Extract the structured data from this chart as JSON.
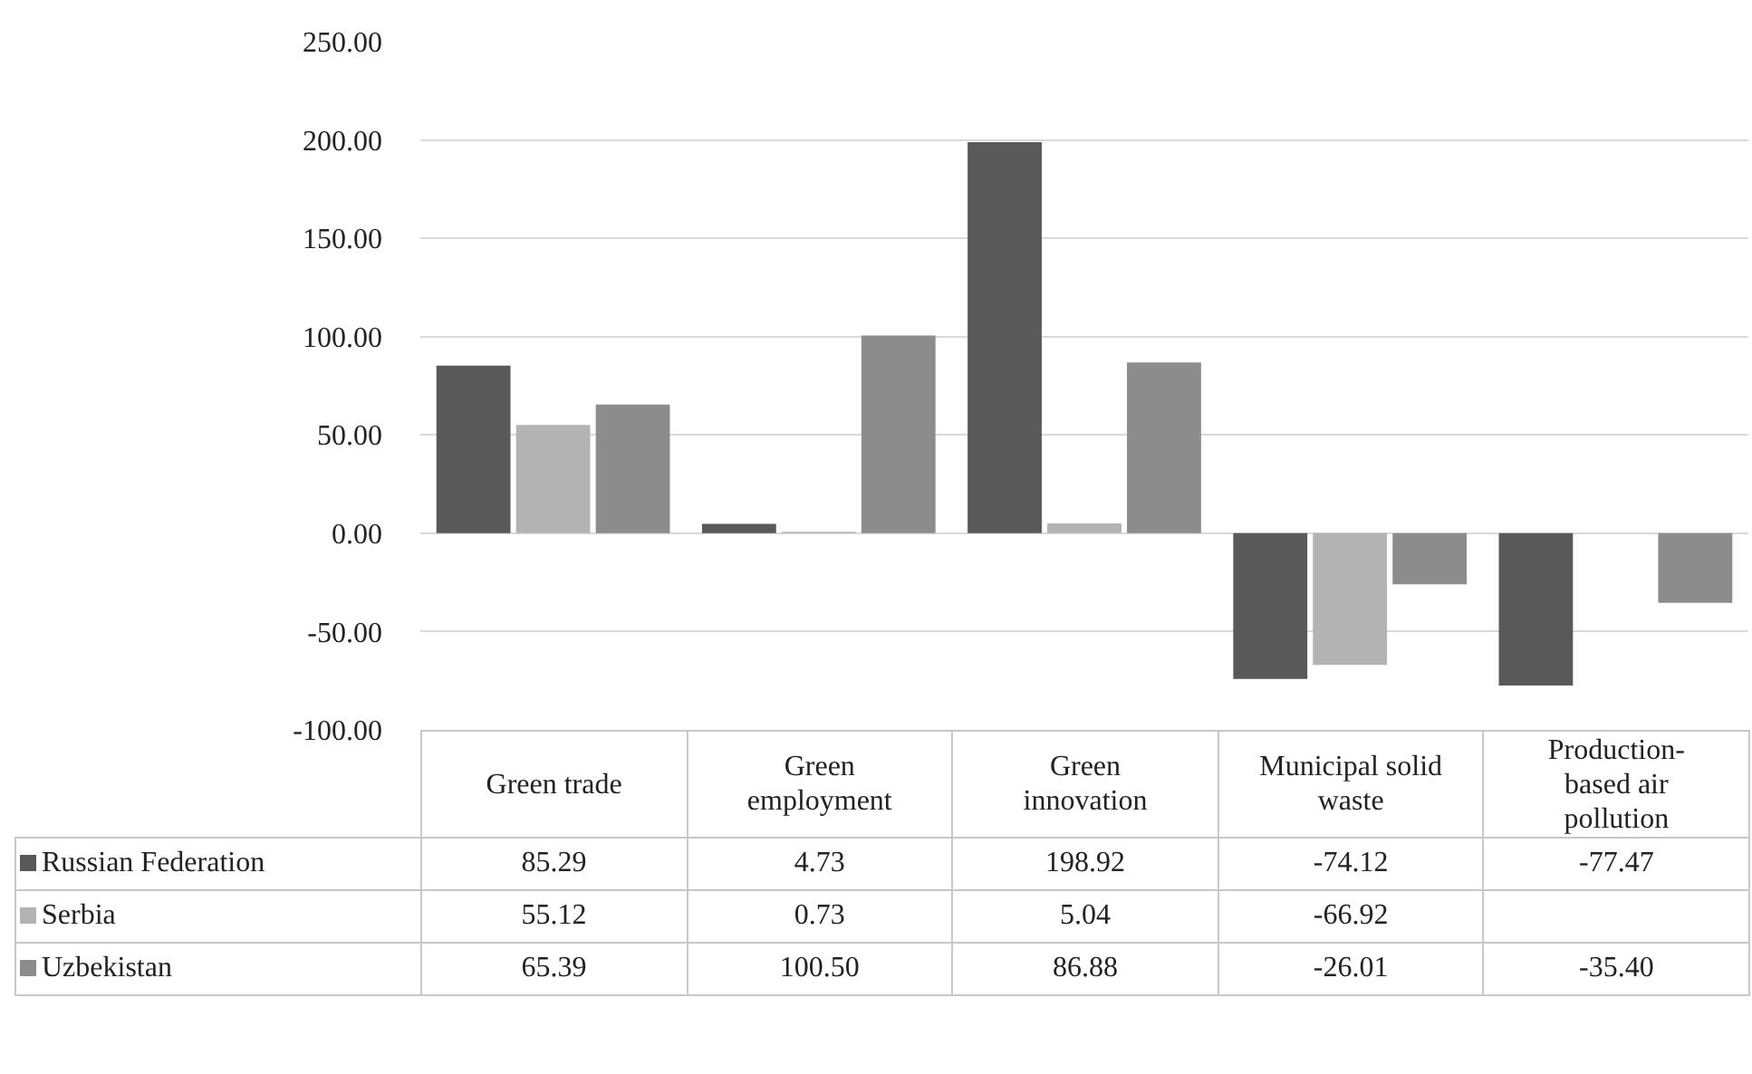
{
  "chart_data": {
    "type": "bar",
    "categories": [
      "Green trade",
      "Green employment",
      "Green innovation",
      "Municipal solid waste",
      "Production-based air pollution"
    ],
    "series": [
      {
        "name": "Russian Federation",
        "color": "#595959",
        "values": [
          85.29,
          4.73,
          198.92,
          -74.12,
          -77.47
        ],
        "value_labels": [
          "85.29",
          "4.73",
          "198.92",
          "-74.12",
          "-77.47"
        ]
      },
      {
        "name": "Serbia",
        "color": "#b3b3b3",
        "values": [
          55.12,
          0.73,
          5.04,
          -66.92,
          null
        ],
        "value_labels": [
          "55.12",
          "0.73",
          "5.04",
          "-66.92",
          null
        ]
      },
      {
        "name": "Uzbekistan",
        "color": "#8c8c8c",
        "values": [
          65.39,
          100.5,
          86.88,
          -26.01,
          -35.4
        ],
        "value_labels": [
          "65.39",
          "100.50",
          "86.88",
          "-26.01",
          "-35.40"
        ]
      }
    ],
    "ylim": [
      -100,
      250
    ],
    "yticks": [
      {
        "value": -100,
        "label": "-100.00"
      },
      {
        "value": -50,
        "label": "-50.00"
      },
      {
        "value": 0,
        "label": "0.00"
      },
      {
        "value": 50,
        "label": "50.00"
      },
      {
        "value": 100,
        "label": "100.00"
      },
      {
        "value": 150,
        "label": "150.00"
      },
      {
        "value": 200,
        "label": "200.00"
      },
      {
        "value": 250,
        "label": "250.00"
      }
    ],
    "grid": "y",
    "legend": "bottom"
  }
}
